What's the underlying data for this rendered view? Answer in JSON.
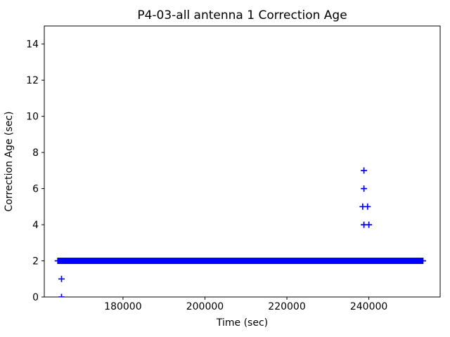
{
  "chart_data": {
    "type": "scatter",
    "title": "P4-03-all antenna 1 Correction Age",
    "xlabel": "Time (sec)",
    "ylabel": "Correction Age (sec)",
    "xlim": [
      160800,
      257400
    ],
    "ylim": [
      0,
      15
    ],
    "xticks": [
      180000,
      200000,
      220000,
      240000
    ],
    "yticks": [
      0,
      2,
      4,
      6,
      8,
      10,
      12,
      14
    ],
    "grid": false,
    "legend": "none",
    "marker": "+",
    "marker_color": "#0000ff",
    "frame_color": "#000000",
    "background_color": "#ffffff",
    "series": [
      {
        "name": "correction-age",
        "dense_band": {
          "y": 2,
          "x_start": 164100,
          "x_end": 253200
        },
        "outlier_points": [
          {
            "x": 165000,
            "y": 0
          },
          {
            "x": 165000,
            "y": 1
          },
          {
            "x": 238800,
            "y": 4
          },
          {
            "x": 240000,
            "y": 4
          },
          {
            "x": 238500,
            "y": 5
          },
          {
            "x": 239700,
            "y": 5
          },
          {
            "x": 238800,
            "y": 6
          },
          {
            "x": 238800,
            "y": 7
          }
        ]
      }
    ]
  }
}
